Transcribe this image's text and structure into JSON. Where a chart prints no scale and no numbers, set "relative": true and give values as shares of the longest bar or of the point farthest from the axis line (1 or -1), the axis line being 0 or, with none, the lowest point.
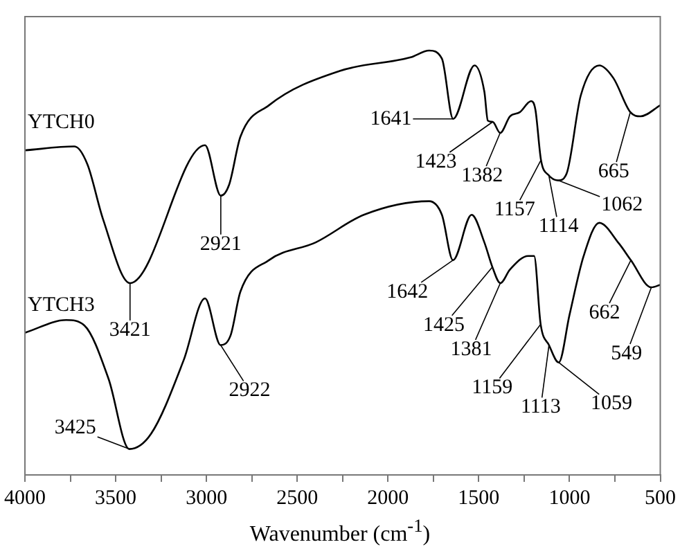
{
  "chart_data": {
    "type": "line",
    "relative": true,
    "xlabel": "Wavenumber (cm$^{-1}$)",
    "xlim": [
      4000,
      500
    ],
    "xticks": [
      4000,
      {
        "value": 3750,
        "label": null
      },
      3500,
      {
        "value": 3250,
        "label": null
      },
      3000,
      {
        "value": 2750,
        "label": null
      },
      2500,
      {
        "value": 2250,
        "label": null
      },
      2000,
      {
        "value": 1750,
        "label": null
      },
      1500,
      {
        "value": 1250,
        "label": null
      },
      1000,
      {
        "value": 750,
        "label": null
      },
      500
    ],
    "legend": "left",
    "grid": false,
    "marker": "none",
    "line_style": "solid",
    "series": [
      {
        "name": "YTCH0",
        "color": "#000000",
        "x": [
          4000,
          3727,
          3656,
          3570,
          3421,
          3008,
          2921,
          2875,
          2813,
          2656,
          2266,
          1875,
          1773,
          1703,
          1641,
          1523,
          1469,
          1450,
          1423,
          1382,
          1328,
          1273,
          1211,
          1188,
          1157,
          1114,
          1062,
          1016,
          938,
          836,
          758,
          665,
          609,
          500
        ],
        "values": [
          0.765,
          0.774,
          0.732,
          0.603,
          0.452,
          0.777,
          0.658,
          0.684,
          0.797,
          0.871,
          0.952,
          0.984,
          1.0,
          0.981,
          0.839,
          0.965,
          0.903,
          0.835,
          0.832,
          0.806,
          0.845,
          0.855,
          0.881,
          0.861,
          0.742,
          0.706,
          0.694,
          0.71,
          0.894,
          0.965,
          0.935,
          0.855,
          0.845,
          0.871
        ]
      },
      {
        "name": "YTCH3",
        "color": "#000000",
        "x": [
          4000,
          3773,
          3672,
          3539,
          3425,
          3305,
          3125,
          3008,
          2922,
          2867,
          2813,
          2656,
          2398,
          2133,
          1773,
          1703,
          1642,
          1539,
          1469,
          1425,
          1381,
          1328,
          1227,
          1195,
          1159,
          1113,
          1059,
          1000,
          922,
          836,
          727,
          662,
          549,
          500
        ],
        "values": [
          0.335,
          0.365,
          0.352,
          0.226,
          0.061,
          0.097,
          0.271,
          0.416,
          0.306,
          0.329,
          0.432,
          0.506,
          0.548,
          0.613,
          0.645,
          0.613,
          0.506,
          0.613,
          0.548,
          0.49,
          0.452,
          0.484,
          0.516,
          0.516,
          0.355,
          0.306,
          0.265,
          0.377,
          0.516,
          0.594,
          0.545,
          0.506,
          0.442,
          0.448
        ]
      }
    ],
    "annotations": [
      {
        "text": "2921",
        "x": 2921,
        "y": 0.658
      },
      {
        "text": "3421",
        "x": 3421,
        "y": 0.452
      },
      {
        "text": "1641",
        "x": 1641,
        "y": 0.839
      },
      {
        "text": "1423",
        "x": 1423,
        "y": 0.832
      },
      {
        "text": "1382",
        "x": 1382,
        "y": 0.806
      },
      {
        "text": "1157",
        "x": 1157,
        "y": 0.742
      },
      {
        "text": "1114",
        "x": 1114,
        "y": 0.706
      },
      {
        "text": "1062",
        "x": 1062,
        "y": 0.694
      },
      {
        "text": "665",
        "x": 665,
        "y": 0.855
      },
      {
        "text": "3425",
        "x": 3425,
        "y": 0.061
      },
      {
        "text": "2922",
        "x": 2922,
        "y": 0.306
      },
      {
        "text": "1642",
        "x": 1642,
        "y": 0.506
      },
      {
        "text": "1425",
        "x": 1425,
        "y": 0.49
      },
      {
        "text": "1381",
        "x": 1381,
        "y": 0.452
      },
      {
        "text": "1159",
        "x": 1159,
        "y": 0.355
      },
      {
        "text": "1113",
        "x": 1113,
        "y": 0.306
      },
      {
        "text": "1059",
        "x": 1059,
        "y": 0.265
      },
      {
        "text": "662",
        "x": 662,
        "y": 0.506
      },
      {
        "text": "549",
        "x": 549,
        "y": 0.442
      }
    ]
  }
}
